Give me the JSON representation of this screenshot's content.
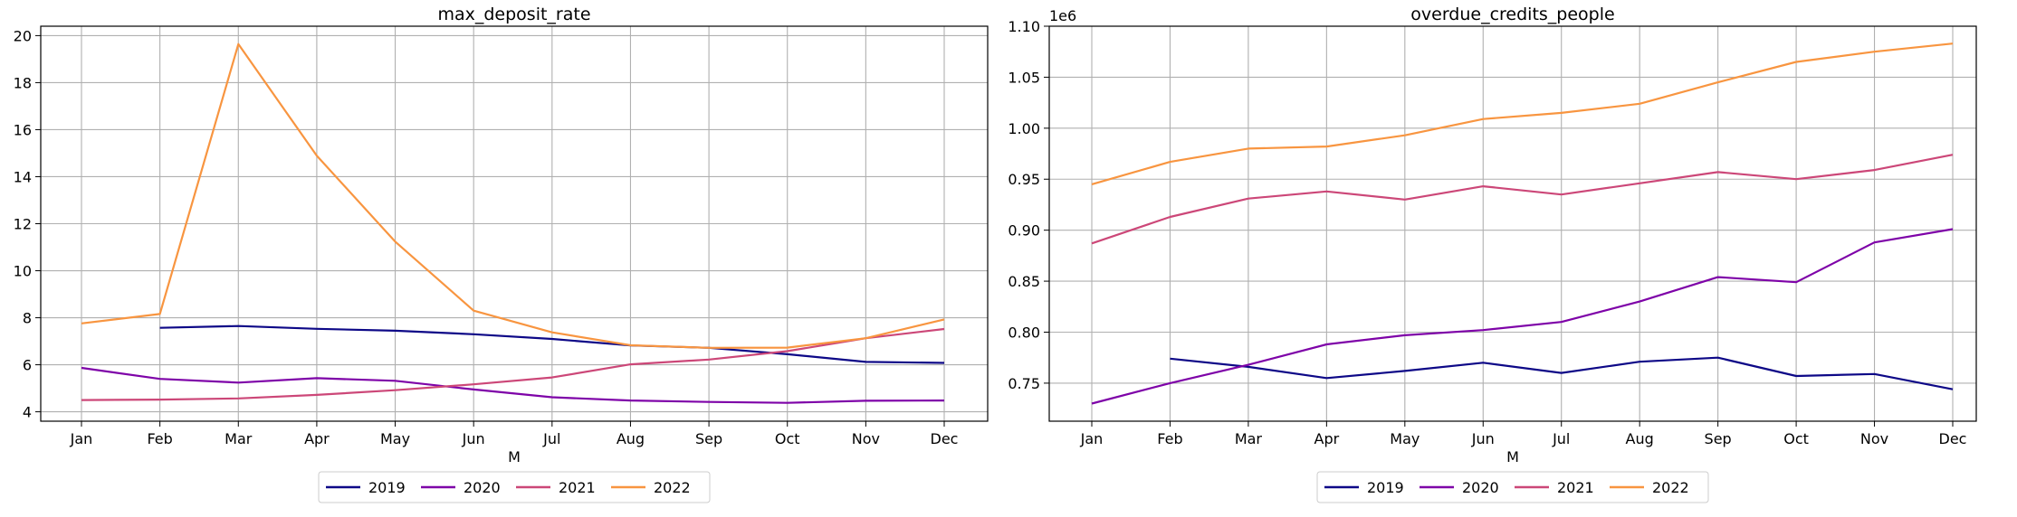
{
  "chart_data": [
    {
      "type": "line",
      "title": "max_deposit_rate",
      "xlabel": "M",
      "ylabel": "",
      "categories": [
        "Jan",
        "Feb",
        "Mar",
        "Apr",
        "May",
        "Jun",
        "Jul",
        "Aug",
        "Sep",
        "Oct",
        "Nov",
        "Dec"
      ],
      "ylim": [
        3.6,
        20.4
      ],
      "yticks": [
        4,
        6,
        8,
        10,
        12,
        14,
        16,
        18,
        20
      ],
      "ytick_labels": [
        "4",
        "6",
        "8",
        "10",
        "12",
        "14",
        "16",
        "18",
        "20"
      ],
      "offset_label": "",
      "grid": true,
      "legend": "bottom-center",
      "series": [
        {
          "name": "2019",
          "color": "#0d0887",
          "values": [
            null,
            7.57,
            7.65,
            7.53,
            7.45,
            7.3,
            7.1,
            6.82,
            6.72,
            6.45,
            6.12,
            6.08
          ]
        },
        {
          "name": "2020",
          "color": "#7e03a8",
          "values": [
            5.87,
            5.4,
            5.24,
            5.43,
            5.32,
            4.95,
            4.62,
            4.48,
            4.42,
            4.38,
            4.47,
            4.48
          ]
        },
        {
          "name": "2021",
          "color": "#cc4778",
          "values": [
            4.5,
            4.52,
            4.57,
            4.72,
            4.92,
            5.17,
            5.46,
            6.02,
            6.22,
            6.58,
            7.13,
            7.52
          ]
        },
        {
          "name": "2022",
          "color": "#f89540",
          "values": [
            7.76,
            8.16,
            19.64,
            14.89,
            11.24,
            8.3,
            7.38,
            6.83,
            6.72,
            6.73,
            7.13,
            7.93
          ]
        }
      ]
    },
    {
      "type": "line",
      "title": "overdue_credits_people",
      "xlabel": "M",
      "ylabel": "",
      "categories": [
        "Jan",
        "Feb",
        "Mar",
        "Apr",
        "May",
        "Jun",
        "Jul",
        "Aug",
        "Sep",
        "Oct",
        "Nov",
        "Dec"
      ],
      "ylim": [
        0.7127,
        1.1
      ],
      "yticks": [
        0.75,
        0.8,
        0.85,
        0.9,
        0.95,
        1.0,
        1.05,
        1.1
      ],
      "ytick_labels": [
        "0.75",
        "0.80",
        "0.85",
        "0.90",
        "0.95",
        "1.00",
        "1.05",
        "1.10"
      ],
      "offset_label": "1e6",
      "grid": true,
      "legend": "bottom-center",
      "series": [
        {
          "name": "2019",
          "color": "#0d0887",
          "values": [
            null,
            0.774,
            0.766,
            0.755,
            0.762,
            0.77,
            0.76,
            0.771,
            0.775,
            0.757,
            0.759,
            0.744
          ]
        },
        {
          "name": "2020",
          "color": "#7e03a8",
          "values": [
            0.73,
            0.75,
            0.768,
            0.788,
            0.797,
            0.802,
            0.81,
            0.83,
            0.854,
            0.849,
            0.888,
            0.901
          ]
        },
        {
          "name": "2021",
          "color": "#cc4778",
          "values": [
            0.887,
            0.913,
            0.931,
            0.938,
            0.93,
            0.943,
            0.935,
            0.946,
            0.957,
            0.95,
            0.959,
            0.974
          ]
        },
        {
          "name": "2022",
          "color": "#f89540",
          "values": [
            0.945,
            0.967,
            0.98,
            0.982,
            0.993,
            1.009,
            1.015,
            1.024,
            1.045,
            1.065,
            1.075,
            1.083
          ]
        }
      ]
    }
  ]
}
